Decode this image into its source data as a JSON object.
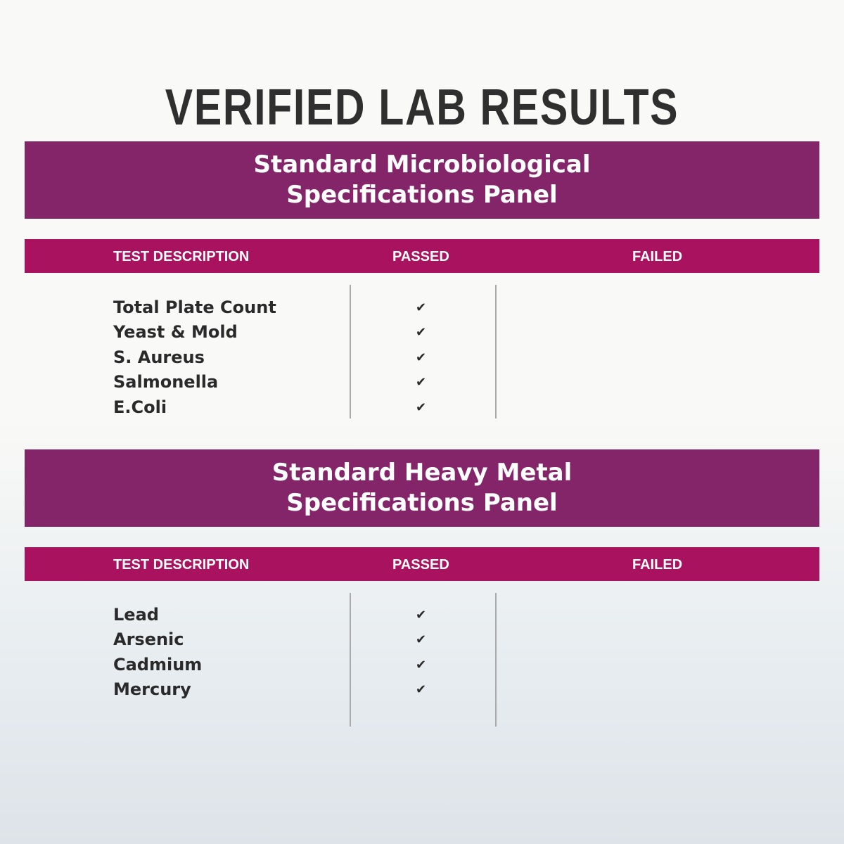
{
  "title": "VERIFIED LAB RESULTS",
  "panels": [
    {
      "title_line1": "Standard Microbiological",
      "title_line2": "Specifications Panel",
      "headers": {
        "description": "TEST DESCRIPTION",
        "passed": "PASSED",
        "failed": "FAILED"
      },
      "rows": [
        {
          "name": "Total Plate Count",
          "result": "passed"
        },
        {
          "name": "Yeast & Mold",
          "result": "passed"
        },
        {
          "name": "S. Aureus",
          "result": "passed"
        },
        {
          "name": "Salmonella",
          "result": "passed"
        },
        {
          "name": "E.Coli",
          "result": "passed"
        }
      ]
    },
    {
      "title_line1": "Standard Heavy Metal",
      "title_line2": "Specifications Panel",
      "headers": {
        "description": "TEST DESCRIPTION",
        "passed": "PASSED",
        "failed": "FAILED"
      },
      "rows": [
        {
          "name": "Lead",
          "result": "passed"
        },
        {
          "name": "Arsenic",
          "result": "passed"
        },
        {
          "name": "Cadmium",
          "result": "passed"
        },
        {
          "name": "Mercury",
          "result": "passed"
        }
      ]
    }
  ],
  "check_glyph": "✔",
  "colors": {
    "panel": "#84256a",
    "table_header": "#a8125f",
    "text": "#2a2a2a"
  }
}
